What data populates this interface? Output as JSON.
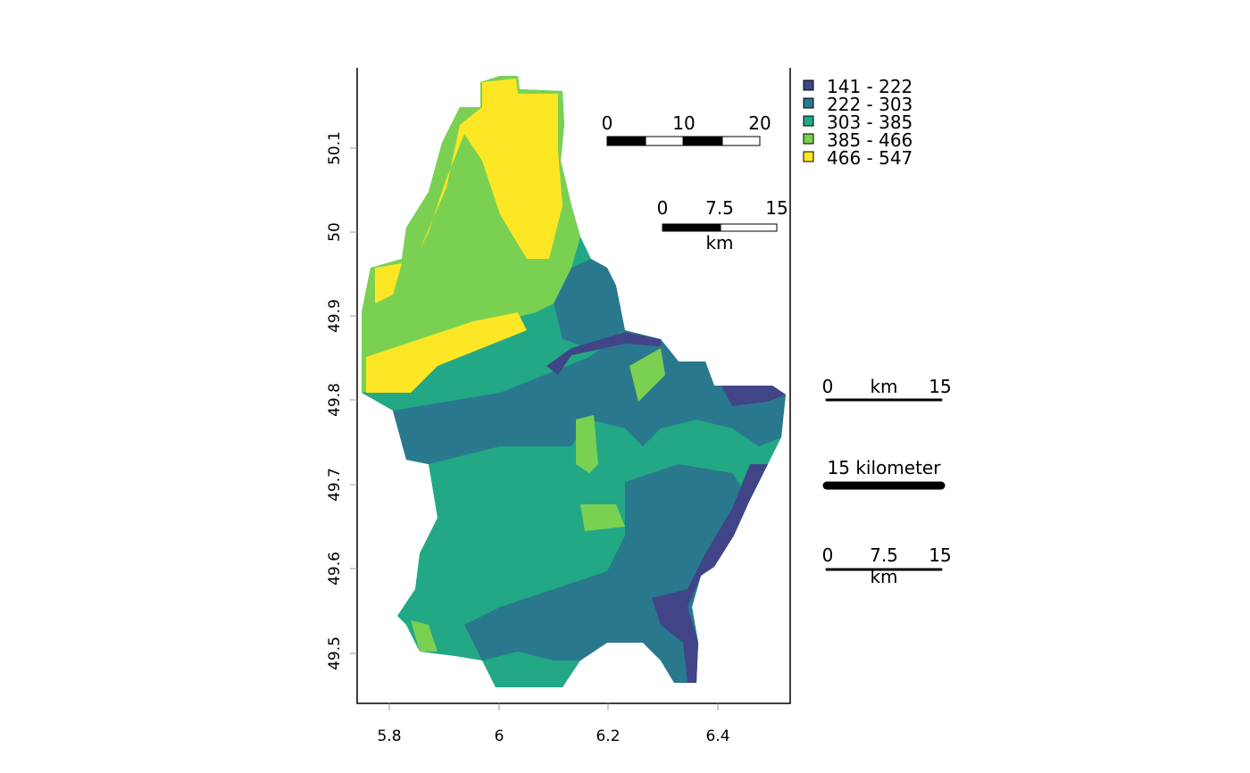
{
  "axes": {
    "x_ticks": [
      "5.8",
      "6",
      "6.2",
      "6.4"
    ],
    "y_ticks": [
      "49.5",
      "49.6",
      "49.7",
      "49.8",
      "49.9",
      "50",
      "50.1"
    ]
  },
  "legend": {
    "items": [
      {
        "label": "141 - 222",
        "color": "#414487"
      },
      {
        "label": "222 - 303",
        "color": "#2A788E"
      },
      {
        "label": "303 - 385",
        "color": "#22A884"
      },
      {
        "label": "385 - 466",
        "color": "#7AD151"
      },
      {
        "label": "466 - 547",
        "color": "#FDE725"
      }
    ]
  },
  "scalebars": {
    "bar1": {
      "labels": [
        "0",
        "10",
        "20"
      ]
    },
    "bar2": {
      "labels": [
        "0",
        "7.5",
        "15"
      ],
      "unit": "km"
    },
    "bar3": {
      "labels": [
        "0",
        "15"
      ],
      "unit": "km"
    },
    "bar4": {
      "label": "15 kilometer"
    },
    "bar5": {
      "labels": [
        "0",
        "7.5",
        "15"
      ],
      "unit": "km"
    }
  }
}
